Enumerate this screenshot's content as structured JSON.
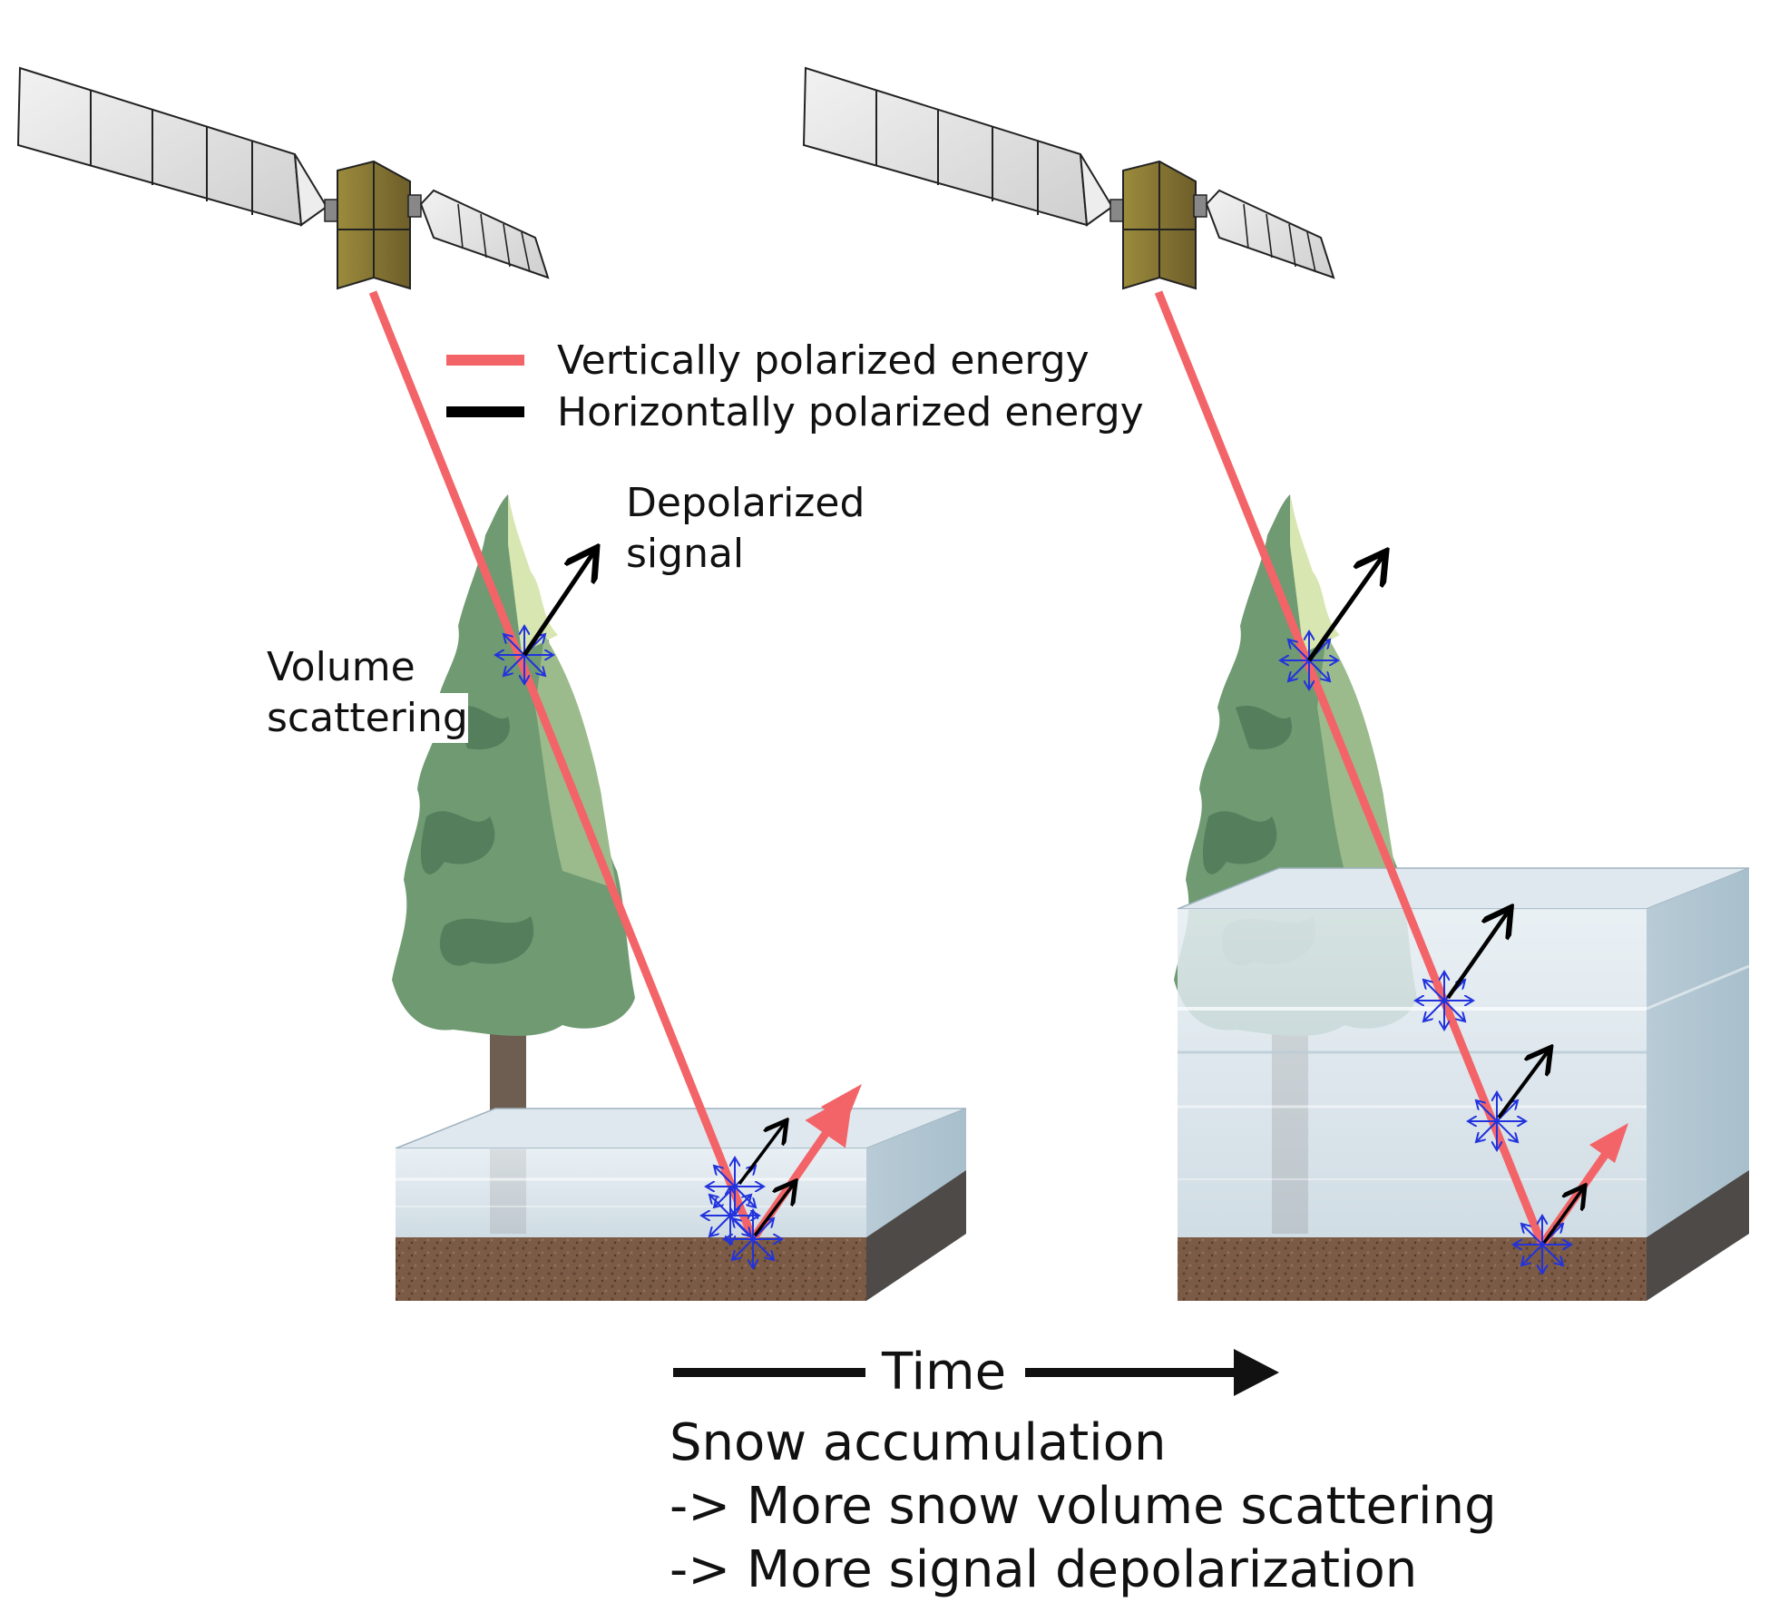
{
  "legend": {
    "vertical_label": "Vertically polarized energy",
    "horizontal_label": "Horizontally polarized energy"
  },
  "annotations": {
    "depolarized_line1": "Depolarized",
    "depolarized_line2": "signal",
    "volume_line1": "Volume",
    "volume_line2": "scattering"
  },
  "time_axis": {
    "label": "Time"
  },
  "caption": {
    "line1": "Snow accumulation",
    "line2": "-> More snow volume scattering",
    "line3": "-> More signal depolarization"
  },
  "colors": {
    "vertical_energy": "#f26468",
    "horizontal_energy": "#000000",
    "scatter_arrows": "#2233dd",
    "snow": "#d6e2ea",
    "soil": "#7a5a45",
    "tree_foliage": "#6f9a6f",
    "tree_trunk": "#6b5a4e",
    "satellite_body": "#8a7a3a",
    "solar_panel": "#e4e4e4"
  },
  "icons": [
    "satellite-icon",
    "tree-icon",
    "snowpack-block",
    "soil-block",
    "scatter-star-icon"
  ]
}
